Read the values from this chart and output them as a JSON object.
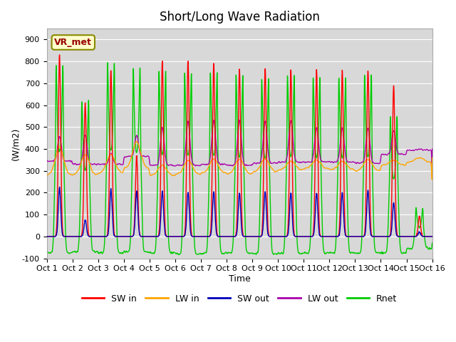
{
  "title": "Short/Long Wave Radiation",
  "xlabel": "Time",
  "ylabel": "(W/m2)",
  "ylim": [
    -100,
    950
  ],
  "xlim": [
    0,
    15
  ],
  "xtick_labels": [
    "Oct 1",
    "Oct 2",
    "Oct 3",
    "Oct 4",
    "Oct 5",
    "Oct 6",
    "Oct 7",
    "Oct 8",
    "Oct 9",
    "Oct 10",
    "Oct 11",
    "Oct 12",
    "Oct 13",
    "Oct 14",
    "Oct 15",
    "Oct 16"
  ],
  "station_label": "VR_met",
  "colors": {
    "SW_in": "#ff0000",
    "LW_in": "#ffa500",
    "SW_out": "#0000bb",
    "LW_out": "#aa00aa",
    "Rnet": "#00cc00"
  },
  "legend_labels": [
    "SW in",
    "LW in",
    "SW out",
    "LW out",
    "Rnet"
  ],
  "bg_color": "#d8d8d8",
  "fig_bg": "#ffffff",
  "sw_peaks": [
    830,
    610,
    760,
    370,
    800,
    805,
    790,
    765,
    770,
    760,
    760,
    755,
    760,
    690,
    95
  ],
  "lw_base_night": [
    280,
    280,
    290,
    310,
    280,
    285,
    290,
    285,
    295,
    305,
    310,
    305,
    300,
    325,
    340
  ],
  "lw_peak": [
    410,
    375,
    375,
    435,
    325,
    350,
    355,
    355,
    355,
    345,
    350,
    345,
    355,
    350,
    360
  ],
  "sw_out_peaks": [
    225,
    75,
    215,
    205,
    205,
    200,
    205,
    200,
    205,
    200,
    200,
    200,
    210,
    155,
    20
  ],
  "lw_out_base": [
    345,
    330,
    330,
    365,
    325,
    325,
    330,
    325,
    335,
    340,
    340,
    340,
    335,
    375,
    395
  ],
  "lw_out_peak": [
    460,
    465,
    380,
    465,
    500,
    530,
    535,
    535,
    530,
    535,
    500,
    500,
    500,
    485,
    400
  ],
  "rnet_peak": [
    385,
    300,
    390,
    380,
    370,
    365,
    365,
    360,
    350,
    360,
    355,
    355,
    360,
    260,
    45
  ],
  "rnet_night": [
    -75,
    -70,
    -75,
    -70,
    -75,
    -78,
    -78,
    -75,
    -78,
    -78,
    -75,
    -75,
    -75,
    -75,
    -55
  ]
}
